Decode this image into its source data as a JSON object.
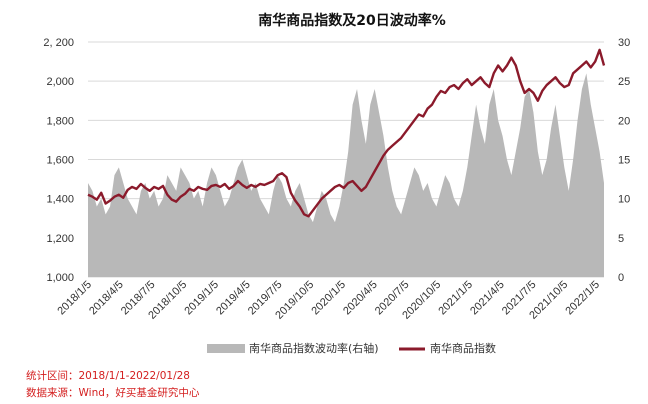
{
  "chart_data": {
    "type": "line",
    "title": "南华商品指数及20日波动率%",
    "left_axis": {
      "ylim": [
        1000,
        2200
      ],
      "ticks": [
        "1,000",
        "1,200",
        "1,400",
        "1,600",
        "1,800",
        "2,000",
        "2, 200"
      ]
    },
    "right_axis": {
      "ylim": [
        0,
        30
      ],
      "ticks": [
        "0",
        "5",
        "10",
        "15",
        "20",
        "25",
        "30"
      ]
    },
    "x_ticks": [
      "2018/1/5",
      "2018/4/5",
      "2018/7/5",
      "2018/10/5",
      "2019/1/5",
      "2019/4/5",
      "2019/7/5",
      "2019/10/5",
      "2020/1/5",
      "2020/4/5",
      "2020/7/5",
      "2020/10/5",
      "2021/1/5",
      "2021/4/5",
      "2021/7/5",
      "2021/10/5",
      "2022/1/5"
    ],
    "grid": "horizontal",
    "legend_position": "bottom",
    "series": [
      {
        "name": "南华商品指数波动率(右轴)",
        "axis": "right",
        "kind": "area",
        "color": "#b8b8b8",
        "values": [
          12,
          11,
          9,
          10,
          8,
          9,
          13,
          14,
          12,
          10,
          9,
          8,
          11,
          12,
          10,
          11,
          9,
          10,
          13,
          12,
          11,
          14,
          13,
          12,
          10,
          11,
          9,
          12,
          14,
          13,
          11,
          9,
          10,
          12,
          14,
          15,
          13,
          11,
          12,
          10,
          9,
          8,
          11,
          13,
          12,
          10,
          9,
          11,
          12,
          10,
          8,
          7,
          9,
          11,
          10,
          8,
          7,
          9,
          12,
          16,
          22,
          24,
          20,
          17,
          22,
          24,
          21,
          18,
          14,
          11,
          9,
          8,
          10,
          12,
          14,
          13,
          11,
          12,
          10,
          9,
          11,
          13,
          12,
          10,
          9,
          11,
          14,
          18,
          22,
          19,
          17,
          22,
          24,
          20,
          18,
          15,
          13,
          16,
          19,
          23,
          24,
          21,
          16,
          13,
          15,
          19,
          22,
          18,
          14,
          11,
          15,
          20,
          24,
          26,
          22,
          19,
          16,
          12
        ]
      },
      {
        "name": "南华商品指数",
        "axis": "left",
        "kind": "line",
        "color": "#8b1a2b",
        "values": [
          1420,
          1410,
          1395,
          1430,
          1375,
          1390,
          1410,
          1420,
          1405,
          1445,
          1460,
          1450,
          1475,
          1455,
          1440,
          1460,
          1450,
          1465,
          1420,
          1395,
          1385,
          1410,
          1425,
          1450,
          1440,
          1460,
          1450,
          1445,
          1465,
          1470,
          1460,
          1475,
          1450,
          1465,
          1490,
          1470,
          1455,
          1470,
          1460,
          1475,
          1470,
          1480,
          1490,
          1520,
          1530,
          1510,
          1430,
          1390,
          1360,
          1320,
          1310,
          1340,
          1370,
          1400,
          1420,
          1440,
          1460,
          1470,
          1455,
          1480,
          1490,
          1465,
          1440,
          1460,
          1500,
          1540,
          1580,
          1620,
          1650,
          1670,
          1690,
          1710,
          1740,
          1770,
          1800,
          1830,
          1820,
          1860,
          1880,
          1920,
          1950,
          1940,
          1970,
          1980,
          1960,
          1990,
          2010,
          1980,
          2000,
          2020,
          1990,
          1970,
          2040,
          2080,
          2050,
          2080,
          2120,
          2080,
          2000,
          1940,
          1960,
          1940,
          1900,
          1950,
          1980,
          2000,
          2020,
          1990,
          1970,
          1980,
          2040,
          2060,
          2080,
          2100,
          2070,
          2100,
          2160,
          2080
        ]
      }
    ]
  },
  "legend": [
    {
      "label": "南华商品指数波动率(右轴)",
      "color": "#b8b8b8"
    },
    {
      "label": "南华商品指数",
      "color": "#8b1a2b"
    }
  ],
  "notes": {
    "period": "统计区间：2018/1/1-2022/01/28",
    "source": "数据来源：Wind，好买基金研究中心"
  }
}
